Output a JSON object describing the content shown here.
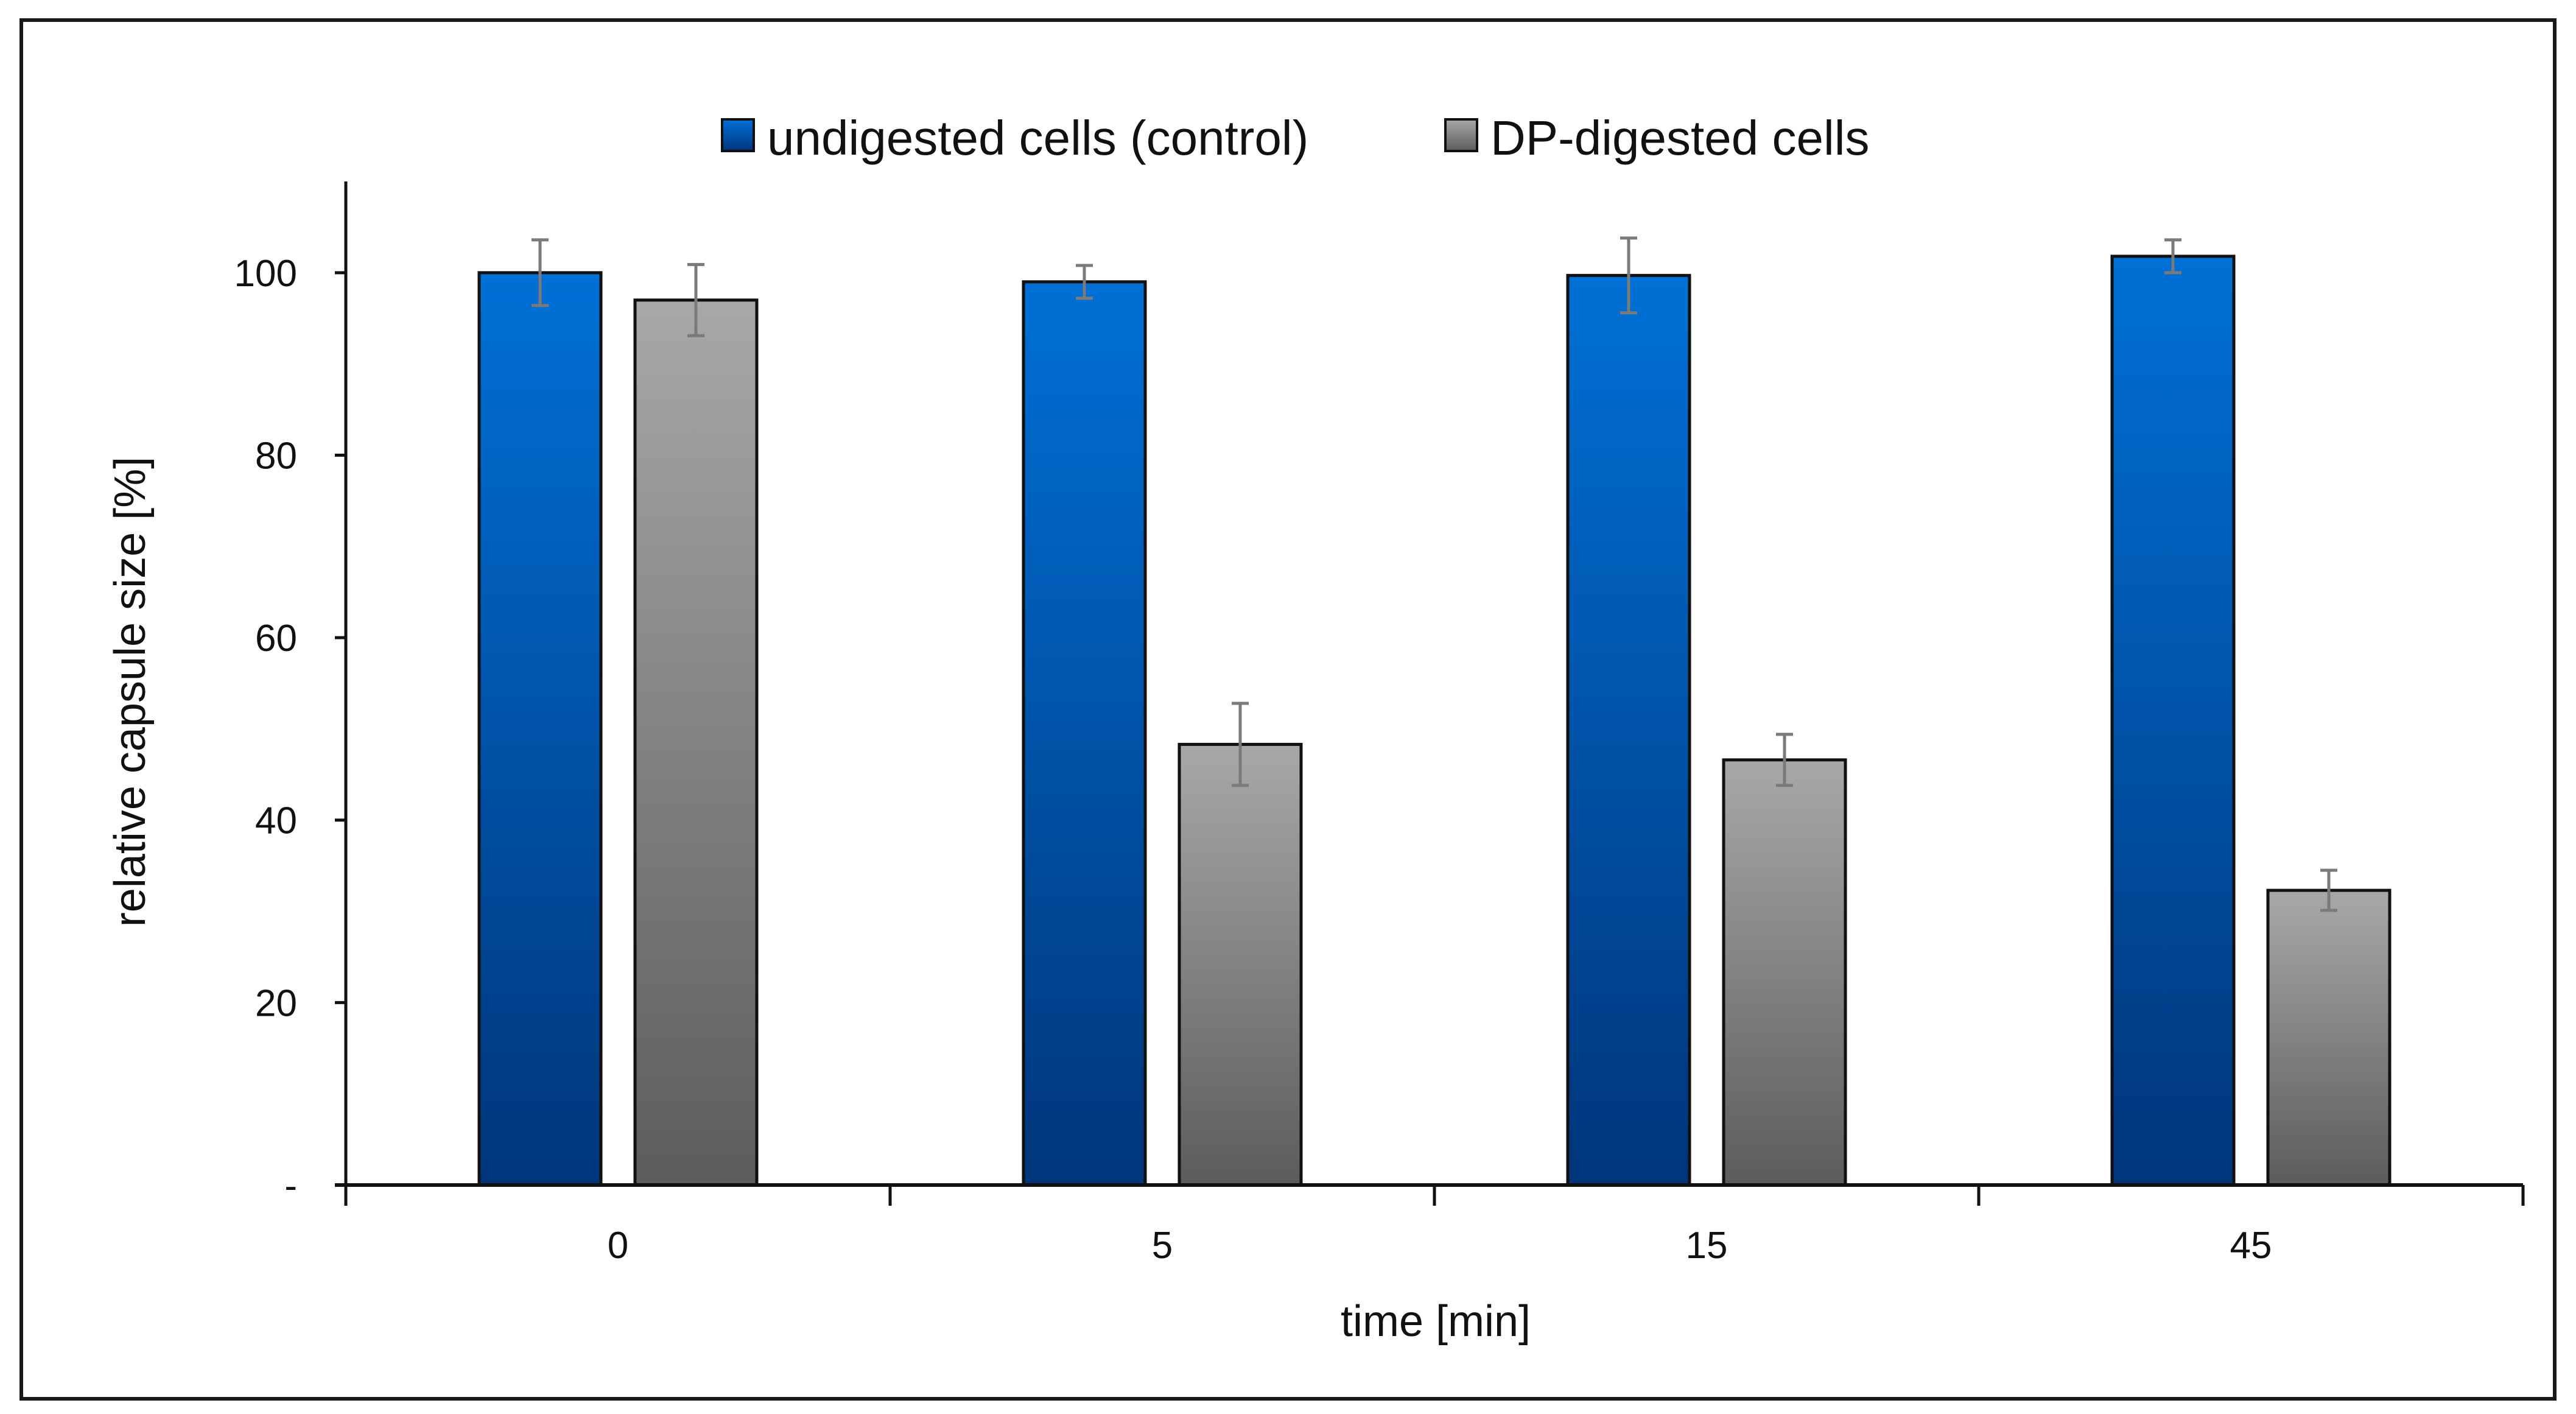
{
  "chart_data": {
    "type": "bar",
    "title": "",
    "xlabel": "time [min]",
    "ylabel": "relative capsule size [%]",
    "categories": [
      "0",
      "5",
      "15",
      "45"
    ],
    "ylim": [
      0,
      110
    ],
    "yticks": [
      0,
      20,
      40,
      60,
      80,
      100
    ],
    "ytick_labels": [
      "-",
      "20",
      "40",
      "60",
      "80",
      "100"
    ],
    "grid": false,
    "legend_position": "top-center",
    "series": [
      {
        "name": "undigested cells (control)",
        "values": [
          100,
          99,
          99.7,
          101.8
        ],
        "errors": [
          3.6,
          1.8,
          4.1,
          1.8
        ],
        "color_top": "#0070d6",
        "color_bottom": "#00357a"
      },
      {
        "name": "DP-digested cells",
        "values": [
          97,
          48.3,
          46.6,
          32.3
        ],
        "errors": [
          3.9,
          4.5,
          2.8,
          2.2
        ],
        "color_top": "#a8a8a8",
        "color_bottom": "#5c5c5c"
      }
    ],
    "error_bar_color": "#7a7a7a",
    "axis_color": "#111111"
  }
}
